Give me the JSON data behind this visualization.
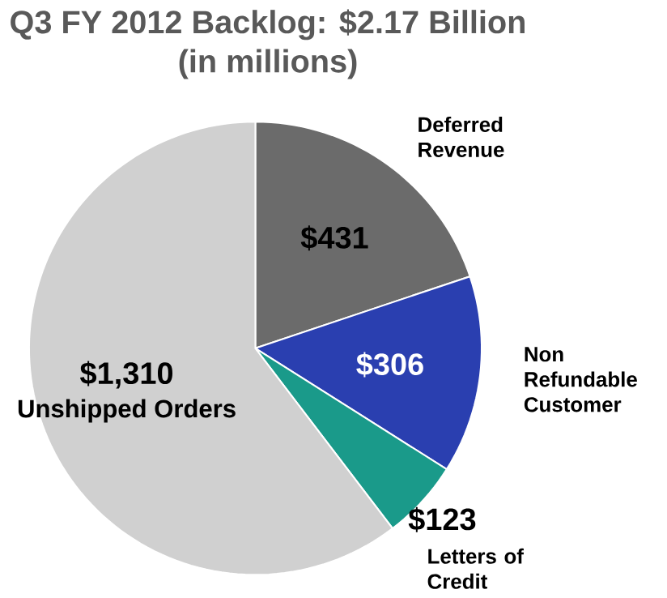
{
  "chart_data": {
    "type": "pie",
    "title": "Q3 FY 2012 Backlog: $2.17 Billion",
    "subtitle": "(in millions)",
    "categories": [
      "Deferred Revenue",
      "Non Refundable Customer",
      "Letters of Credit",
      "Unshipped Orders"
    ],
    "values": [
      431,
      306,
      123,
      1310
    ],
    "colors": [
      "#6b6b6b",
      "#2a3fb0",
      "#1a9a8a",
      "#d0d0d0"
    ],
    "value_labels": [
      "$431",
      "$306",
      "$123",
      "$1,310"
    ]
  }
}
